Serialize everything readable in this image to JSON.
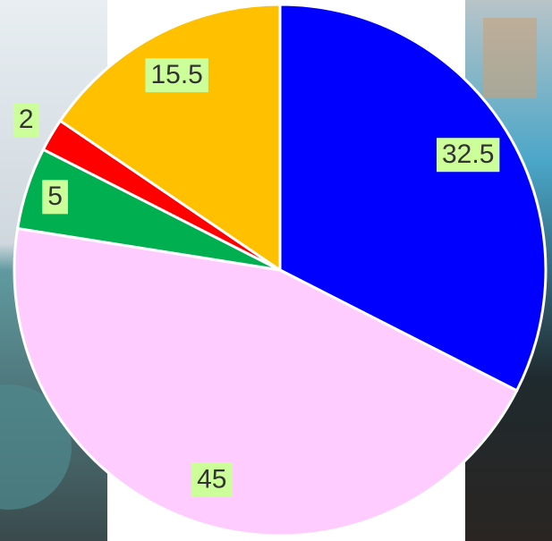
{
  "chart_data": {
    "type": "pie",
    "values": [
      32.5,
      45,
      5,
      2,
      15.5
    ],
    "colors": [
      "#0000ff",
      "#ffccff",
      "#00b050",
      "#ff0000",
      "#ffc000"
    ],
    "label_background": "#ccff99",
    "start_angle": 0,
    "direction": "clockwise"
  }
}
